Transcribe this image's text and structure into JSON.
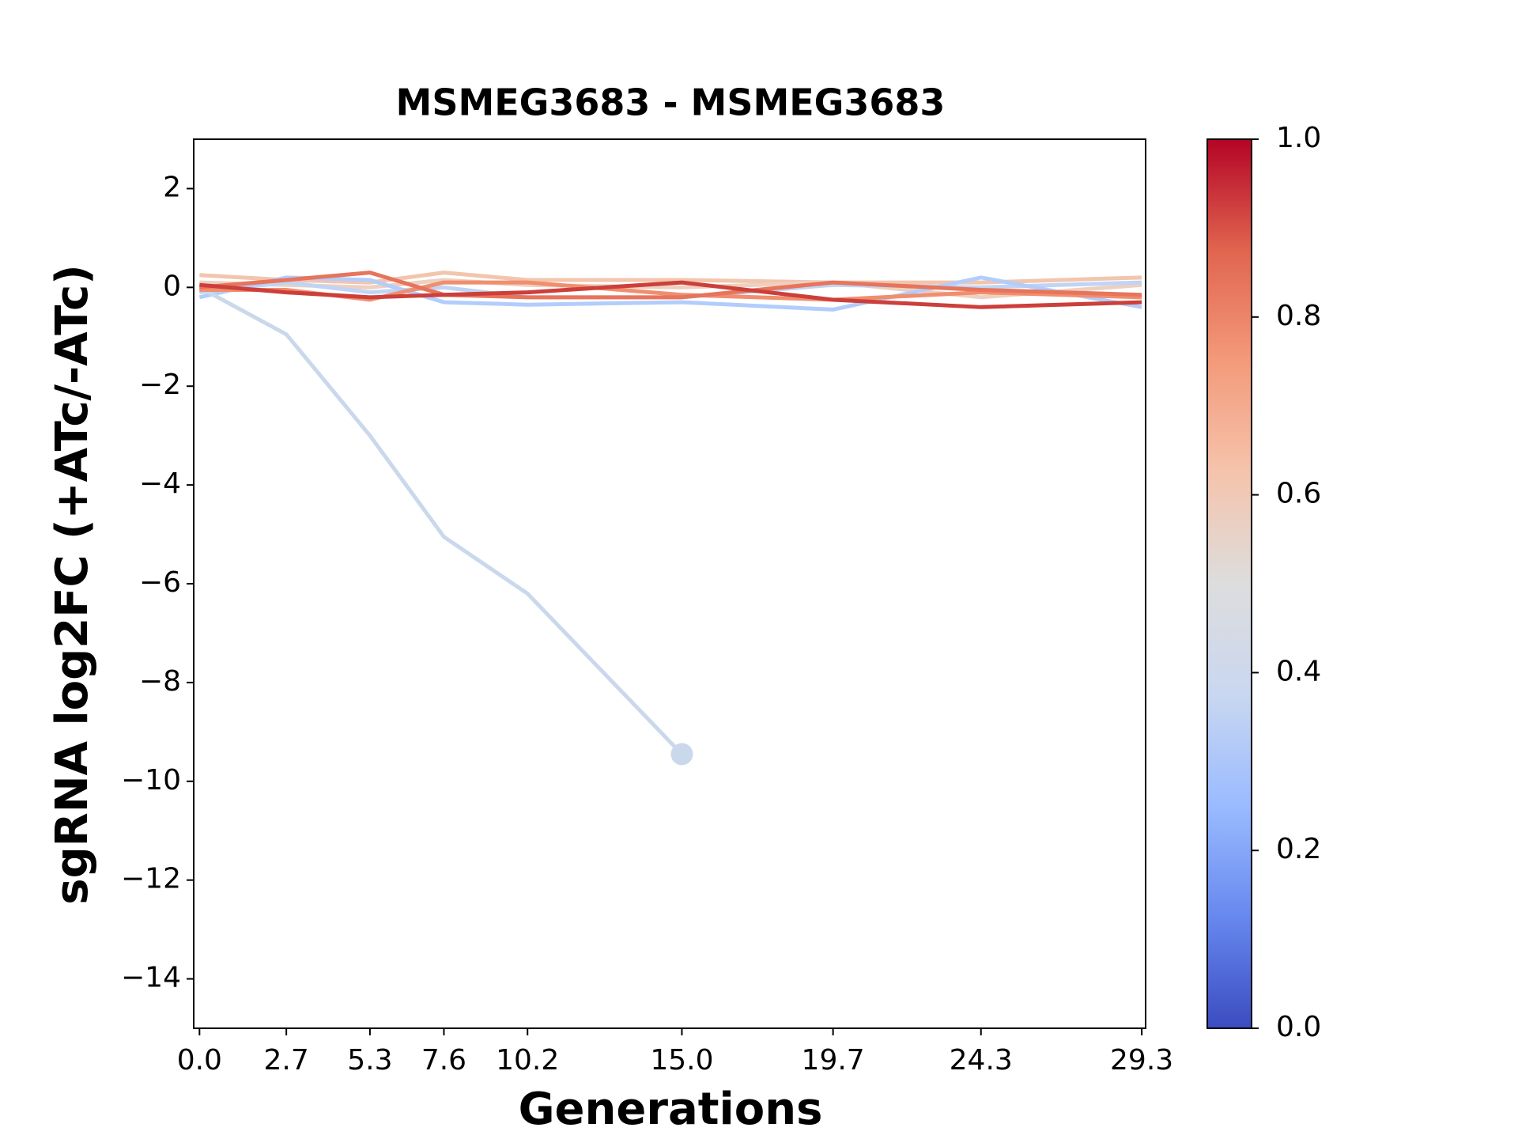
{
  "chart_data": {
    "type": "line",
    "title": "MSMEG3683 - MSMEG3683",
    "xlabel": "Generations",
    "ylabel": "sgRNA log2FC (+ATc/-ATc)",
    "x": [
      0.0,
      2.7,
      5.3,
      7.6,
      10.2,
      15.0,
      19.7,
      24.3,
      29.3
    ],
    "xlim": [
      -0.18,
      29.42
    ],
    "xticks": [
      {
        "value": 0,
        "label": "0.0"
      },
      2.7,
      5.3,
      7.6,
      10.2,
      {
        "value": 15,
        "label": "15.0"
      },
      19.7,
      24.3,
      29.3
    ],
    "ylim": [
      -15,
      3
    ],
    "yticks": [
      2,
      0,
      {
        "value": -2,
        "label": "−2"
      },
      {
        "value": -4,
        "label": "−4"
      },
      {
        "value": -6,
        "label": "−6"
      },
      {
        "value": -8,
        "label": "−8"
      },
      {
        "value": -10,
        "label": "−10"
      },
      {
        "value": -12,
        "label": "−12"
      },
      {
        "value": -14,
        "label": "−14"
      }
    ],
    "series": [
      {
        "color": "#f2c5ad",
        "values": [
          0.25,
          0.15,
          0.1,
          0.3,
          0.15,
          0.15,
          0.1,
          0.1,
          0.2
        ]
      },
      {
        "color": "#eed0c0",
        "values": [
          0.1,
          0.05,
          0.0,
          0.15,
          0.05,
          0.0,
          0.1,
          -0.2,
          0.05
        ]
      },
      {
        "color": "#c0d4f5",
        "values": [
          -0.1,
          0.1,
          -0.1,
          0.0,
          -0.2,
          -0.2,
          0.05,
          0.0,
          0.1
        ]
      },
      {
        "color": "#b3cdfb",
        "values": [
          -0.2,
          0.2,
          0.15,
          -0.3,
          -0.35,
          -0.3,
          -0.45,
          0.2,
          -0.4
        ]
      },
      {
        "color": "#cad8ec",
        "values": [
          0.0,
          -0.95,
          -3.0,
          -5.05,
          -6.2,
          -9.45,
          null,
          null,
          null
        ],
        "end_marker": true
      },
      {
        "color": "#f08e6e",
        "values": [
          -0.05,
          -0.05,
          -0.25,
          0.1,
          0.1,
          -0.15,
          -0.25,
          -0.1,
          -0.2
        ]
      },
      {
        "color": "#e7745b",
        "values": [
          0.0,
          0.15,
          0.3,
          -0.15,
          -0.2,
          -0.2,
          0.1,
          -0.05,
          -0.15
        ]
      },
      {
        "color": "#cc3f3a",
        "values": [
          0.05,
          -0.1,
          -0.2,
          -0.15,
          -0.1,
          0.1,
          -0.25,
          -0.4,
          -0.3
        ]
      }
    ],
    "colorbar": {
      "lim": [
        0,
        1
      ],
      "ticks": [
        {
          "value": 0,
          "label": "0.0"
        },
        0.2,
        0.4,
        0.6,
        0.8,
        {
          "value": 1,
          "label": "1.0"
        }
      ],
      "colors": [
        "#3b4cc0",
        "#6788ee",
        "#9abbff",
        "#c9d7f0",
        "#dddddd",
        "#f5c4ac",
        "#f49a7b",
        "#e0654f",
        "#b40426"
      ]
    }
  }
}
